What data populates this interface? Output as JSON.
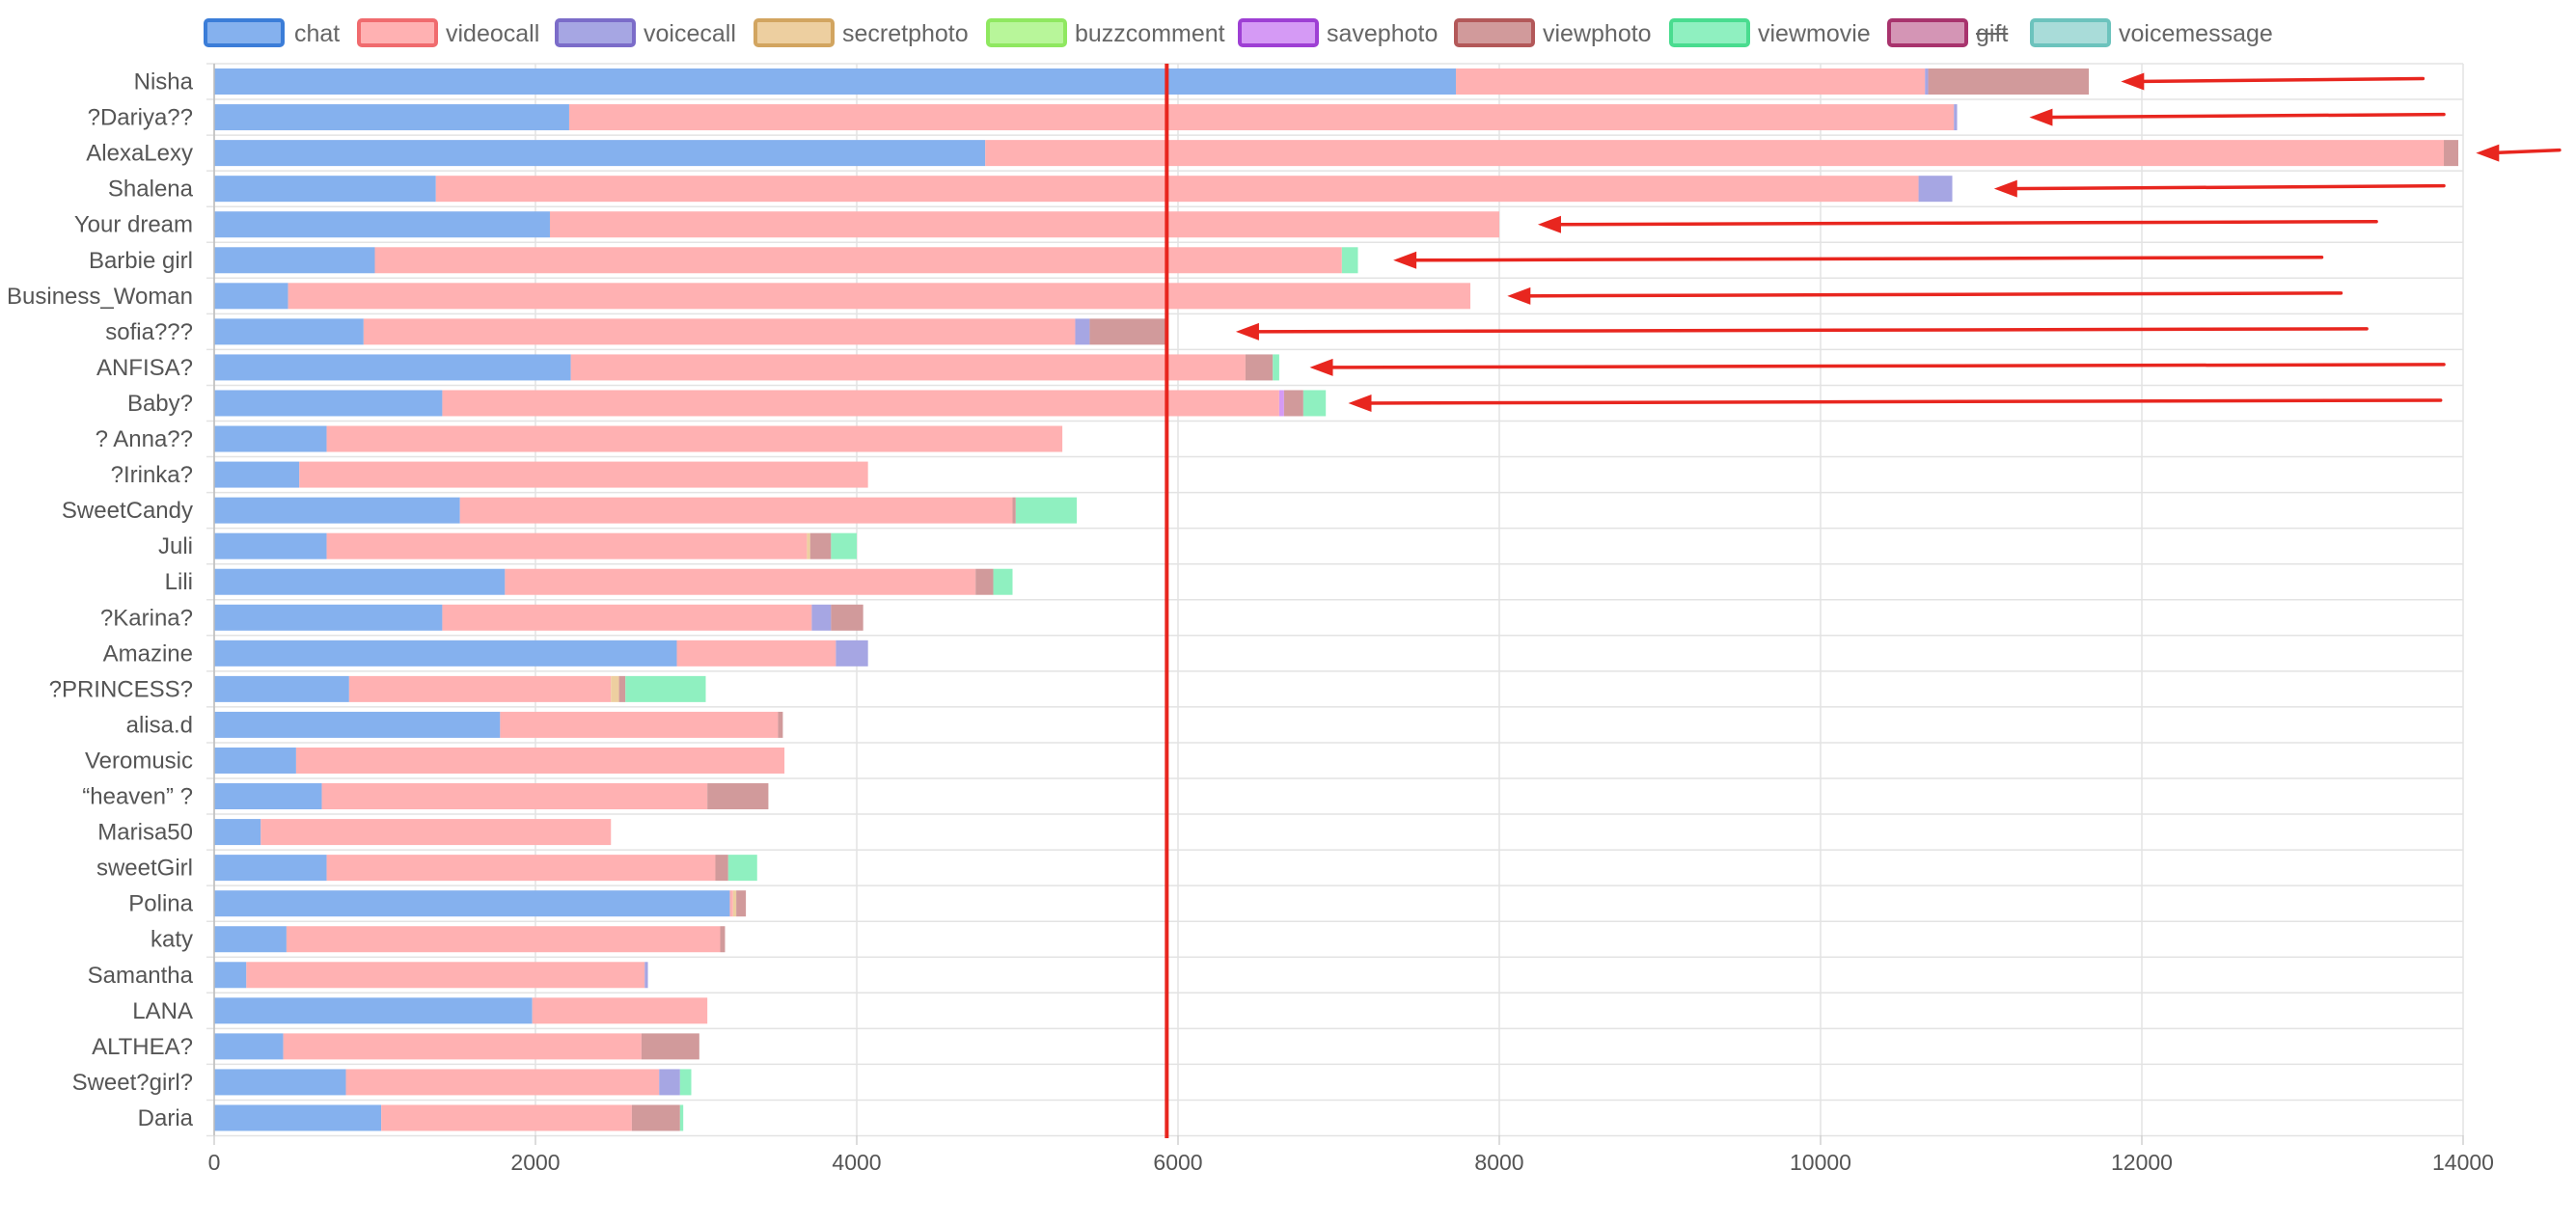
{
  "chart_data": {
    "type": "bar",
    "orientation": "horizontal",
    "stacked": true,
    "xlim": [
      0,
      14000
    ],
    "x_ticks": [
      0,
      2000,
      4000,
      6000,
      8000,
      10000,
      12000,
      14000
    ],
    "grid": true,
    "legend_position": "top",
    "reference_line": {
      "x": 5930,
      "color": "#e8261f"
    },
    "categories": [
      "Nisha",
      "?Dariya??",
      "AlexaLexy",
      "Shalena",
      "Your dream",
      "Barbie girl",
      "Business_Woman",
      "sofia???",
      "ANFISA?",
      "Baby?",
      "? Anna??",
      "?Irinka?",
      "SweetCandy",
      "Juli",
      "Lili",
      "?Karina?",
      "Amazine",
      "?PRINCESS?",
      "alisa.d",
      "Veromusic",
      "“heaven” ?",
      "Marisa50",
      "sweetGirl",
      "Polina",
      "katy",
      "Samantha",
      "LANA",
      "ALTHEA?",
      "Sweet?girl?",
      "Daria"
    ],
    "series": [
      {
        "name": "chat",
        "hidden": false,
        "color": "#85b1ee",
        "border": "#3b7dd8",
        "values": [
          7730,
          2210,
          4800,
          1380,
          2090,
          1000,
          460,
          930,
          2220,
          1420,
          700,
          530,
          1530,
          700,
          1810,
          1420,
          2880,
          840,
          1780,
          510,
          670,
          290,
          700,
          3210,
          450,
          200,
          1980,
          430,
          820,
          1040
        ]
      },
      {
        "name": "videocall",
        "hidden": false,
        "color": "#ffb1b2",
        "border": "#f06b6e",
        "values": [
          2920,
          8620,
          9080,
          9230,
          5910,
          6020,
          7360,
          4430,
          4200,
          5210,
          4580,
          3540,
          3440,
          2990,
          2930,
          2300,
          990,
          1630,
          1730,
          3040,
          2400,
          2180,
          2420,
          20,
          2700,
          2480,
          1090,
          2230,
          1950,
          1560
        ]
      },
      {
        "name": "voicecall",
        "hidden": false,
        "color": "#a6a6e3",
        "border": "#7b6cc9",
        "values": [
          20,
          20,
          0,
          210,
          0,
          0,
          0,
          90,
          0,
          0,
          0,
          0,
          0,
          0,
          0,
          120,
          200,
          0,
          0,
          0,
          0,
          0,
          0,
          0,
          0,
          20,
          0,
          0,
          130,
          0
        ]
      },
      {
        "name": "secretphoto",
        "hidden": false,
        "color": "#edcfa0",
        "border": "#d2a560",
        "values": [
          0,
          0,
          0,
          0,
          0,
          0,
          0,
          0,
          0,
          0,
          0,
          0,
          0,
          20,
          0,
          0,
          0,
          50,
          0,
          0,
          0,
          0,
          0,
          20,
          0,
          0,
          0,
          0,
          0,
          0
        ]
      },
      {
        "name": "buzzcomment",
        "hidden": false,
        "color": "#b8f69a",
        "border": "#8fe860",
        "values": [
          0,
          0,
          0,
          0,
          0,
          0,
          0,
          0,
          0,
          0,
          0,
          0,
          0,
          0,
          0,
          0,
          0,
          0,
          0,
          0,
          0,
          0,
          0,
          0,
          0,
          0,
          0,
          0,
          0,
          0
        ]
      },
      {
        "name": "savephoto",
        "hidden": false,
        "color": "#d59af5",
        "border": "#9e3fd4",
        "values": [
          0,
          0,
          0,
          0,
          0,
          0,
          0,
          0,
          0,
          30,
          0,
          0,
          0,
          0,
          0,
          0,
          0,
          0,
          0,
          0,
          0,
          0,
          0,
          0,
          0,
          0,
          0,
          0,
          0,
          0
        ]
      },
      {
        "name": "viewphoto",
        "hidden": false,
        "color": "#d19a9b",
        "border": "#b35859",
        "values": [
          1000,
          0,
          90,
          0,
          0,
          0,
          0,
          480,
          170,
          120,
          0,
          0,
          20,
          130,
          110,
          200,
          0,
          40,
          30,
          0,
          380,
          0,
          80,
          60,
          30,
          0,
          0,
          360,
          0,
          300
        ]
      },
      {
        "name": "viewmovie",
        "hidden": false,
        "color": "#8ff0c0",
        "border": "#49dc8f",
        "values": [
          0,
          0,
          0,
          0,
          0,
          100,
          0,
          0,
          40,
          140,
          0,
          0,
          380,
          160,
          120,
          0,
          0,
          500,
          0,
          0,
          0,
          0,
          180,
          0,
          0,
          0,
          0,
          0,
          70,
          20
        ]
      },
      {
        "name": "gift",
        "hidden": true,
        "color": "#d495b5",
        "border": "#a8336d",
        "values": [
          0,
          0,
          0,
          0,
          0,
          0,
          0,
          0,
          0,
          0,
          0,
          0,
          0,
          0,
          0,
          0,
          0,
          0,
          0,
          0,
          0,
          0,
          0,
          0,
          0,
          0,
          0,
          0,
          0,
          0
        ]
      },
      {
        "name": "voicemessage",
        "hidden": false,
        "color": "#a9dcd9",
        "border": "#6cc3bd",
        "values": [
          0,
          0,
          0,
          0,
          0,
          0,
          0,
          0,
          0,
          0,
          0,
          0,
          0,
          0,
          0,
          0,
          0,
          0,
          0,
          0,
          0,
          0,
          0,
          0,
          0,
          0,
          0,
          0,
          0,
          0
        ]
      }
    ],
    "annotations": {
      "arrow_color": "#e8261f",
      "arrows": [
        {
          "category": "Nisha",
          "from_x": 13750,
          "to_x": 11870
        },
        {
          "category": "?Dariya??",
          "from_x": 13880,
          "to_x": 11300
        },
        {
          "category": "AlexaLexy",
          "from_x": 14600,
          "to_x": 14080
        },
        {
          "category": "Shalena",
          "from_x": 13880,
          "to_x": 11080
        },
        {
          "category": "Your dream",
          "from_x": 13460,
          "to_x": 8240
        },
        {
          "category": "Barbie girl",
          "from_x": 13120,
          "to_x": 7340
        },
        {
          "category": "Business_Woman",
          "from_x": 13240,
          "to_x": 8050
        },
        {
          "category": "sofia???",
          "from_x": 13400,
          "to_x": 6360
        },
        {
          "category": "ANFISA?",
          "from_x": 13880,
          "to_x": 6820
        },
        {
          "category": "Baby?",
          "from_x": 13860,
          "to_x": 7060
        }
      ]
    }
  }
}
